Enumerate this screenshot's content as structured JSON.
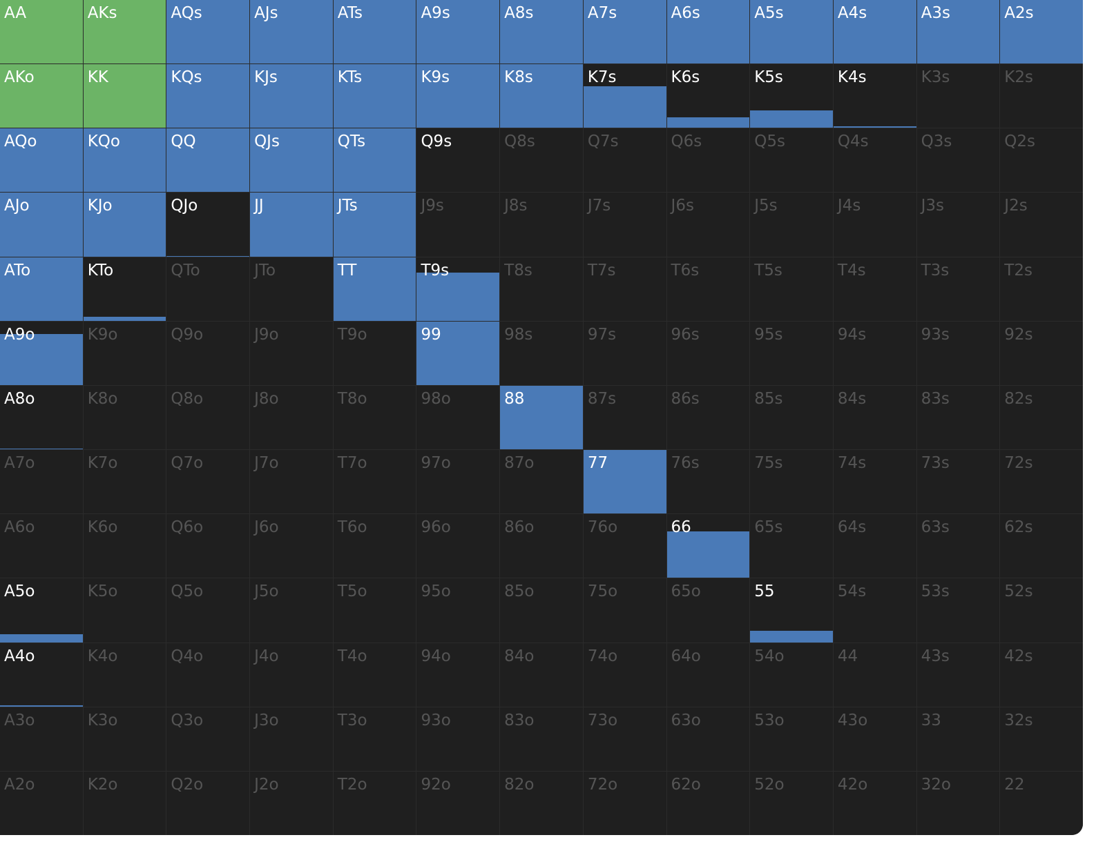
{
  "colors": {
    "raise_fill": "#4a7ab7",
    "allin_fill": "#6cb466",
    "empty_cell": "#1f1f1f",
    "inactive_text": "#555555",
    "active_text": "#ffffff"
  },
  "range_grid": [
    [
      {
        "hand": "AA",
        "freq": 1,
        "action": "allin"
      },
      {
        "hand": "AKs",
        "freq": 1,
        "action": "allin"
      },
      {
        "hand": "AQs",
        "freq": 1,
        "action": "raise"
      },
      {
        "hand": "AJs",
        "freq": 1,
        "action": "raise"
      },
      {
        "hand": "ATs",
        "freq": 1,
        "action": "raise"
      },
      {
        "hand": "A9s",
        "freq": 1,
        "action": "raise"
      },
      {
        "hand": "A8s",
        "freq": 1,
        "action": "raise"
      },
      {
        "hand": "A7s",
        "freq": 1,
        "action": "raise"
      },
      {
        "hand": "A6s",
        "freq": 1,
        "action": "raise"
      },
      {
        "hand": "A5s",
        "freq": 1,
        "action": "raise"
      },
      {
        "hand": "A4s",
        "freq": 1,
        "action": "raise"
      },
      {
        "hand": "A3s",
        "freq": 1,
        "action": "raise"
      },
      {
        "hand": "A2s",
        "freq": 1,
        "action": "raise"
      }
    ],
    [
      {
        "hand": "AKo",
        "freq": 1,
        "action": "allin"
      },
      {
        "hand": "KK",
        "freq": 1,
        "action": "allin"
      },
      {
        "hand": "KQs",
        "freq": 1,
        "action": "raise"
      },
      {
        "hand": "KJs",
        "freq": 1,
        "action": "raise"
      },
      {
        "hand": "KTs",
        "freq": 1,
        "action": "raise"
      },
      {
        "hand": "K9s",
        "freq": 1,
        "action": "raise"
      },
      {
        "hand": "K8s",
        "freq": 1,
        "action": "raise"
      },
      {
        "hand": "K7s",
        "freq": 0.65,
        "action": "raise"
      },
      {
        "hand": "K6s",
        "freq": 0.17,
        "action": "raise"
      },
      {
        "hand": "K5s",
        "freq": 0.27,
        "action": "raise"
      },
      {
        "hand": "K4s",
        "freq": 0.03,
        "action": "raise"
      },
      {
        "hand": "K3s",
        "freq": 0,
        "action": "raise"
      },
      {
        "hand": "K2s",
        "freq": 0,
        "action": "raise"
      }
    ],
    [
      {
        "hand": "AQo",
        "freq": 1,
        "action": "raise"
      },
      {
        "hand": "KQo",
        "freq": 1,
        "action": "raise"
      },
      {
        "hand": "QQ",
        "freq": 1,
        "action": "raise"
      },
      {
        "hand": "QJs",
        "freq": 1,
        "action": "raise"
      },
      {
        "hand": "QTs",
        "freq": 1,
        "action": "raise"
      },
      {
        "hand": "Q9s",
        "freq": 0.01,
        "action": "raise"
      },
      {
        "hand": "Q8s",
        "freq": 0,
        "action": "raise"
      },
      {
        "hand": "Q7s",
        "freq": 0,
        "action": "raise"
      },
      {
        "hand": "Q6s",
        "freq": 0,
        "action": "raise"
      },
      {
        "hand": "Q5s",
        "freq": 0,
        "action": "raise"
      },
      {
        "hand": "Q4s",
        "freq": 0,
        "action": "raise"
      },
      {
        "hand": "Q3s",
        "freq": 0,
        "action": "raise"
      },
      {
        "hand": "Q2s",
        "freq": 0,
        "action": "raise"
      }
    ],
    [
      {
        "hand": "AJo",
        "freq": 1,
        "action": "raise"
      },
      {
        "hand": "KJo",
        "freq": 1,
        "action": "raise"
      },
      {
        "hand": "QJo",
        "freq": 0.01,
        "action": "raise"
      },
      {
        "hand": "JJ",
        "freq": 1,
        "action": "raise"
      },
      {
        "hand": "JTs",
        "freq": 1,
        "action": "raise"
      },
      {
        "hand": "J9s",
        "freq": 0,
        "action": "raise"
      },
      {
        "hand": "J8s",
        "freq": 0,
        "action": "raise"
      },
      {
        "hand": "J7s",
        "freq": 0,
        "action": "raise"
      },
      {
        "hand": "J6s",
        "freq": 0,
        "action": "raise"
      },
      {
        "hand": "J5s",
        "freq": 0,
        "action": "raise"
      },
      {
        "hand": "J4s",
        "freq": 0,
        "action": "raise"
      },
      {
        "hand": "J3s",
        "freq": 0,
        "action": "raise"
      },
      {
        "hand": "J2s",
        "freq": 0,
        "action": "raise"
      }
    ],
    [
      {
        "hand": "ATo",
        "freq": 1,
        "action": "raise"
      },
      {
        "hand": "KTo",
        "freq": 0.06,
        "action": "raise"
      },
      {
        "hand": "QTo",
        "freq": 0,
        "action": "raise"
      },
      {
        "hand": "JTo",
        "freq": 0,
        "action": "raise"
      },
      {
        "hand": "TT",
        "freq": 1,
        "action": "raise"
      },
      {
        "hand": "T9s",
        "freq": 0.76,
        "action": "raise"
      },
      {
        "hand": "T8s",
        "freq": 0,
        "action": "raise"
      },
      {
        "hand": "T7s",
        "freq": 0,
        "action": "raise"
      },
      {
        "hand": "T6s",
        "freq": 0,
        "action": "raise"
      },
      {
        "hand": "T5s",
        "freq": 0,
        "action": "raise"
      },
      {
        "hand": "T4s",
        "freq": 0,
        "action": "raise"
      },
      {
        "hand": "T3s",
        "freq": 0,
        "action": "raise"
      },
      {
        "hand": "T2s",
        "freq": 0,
        "action": "raise"
      }
    ],
    [
      {
        "hand": "A9o",
        "freq": 0.8,
        "action": "raise"
      },
      {
        "hand": "K9o",
        "freq": 0,
        "action": "raise"
      },
      {
        "hand": "Q9o",
        "freq": 0,
        "action": "raise"
      },
      {
        "hand": "J9o",
        "freq": 0,
        "action": "raise"
      },
      {
        "hand": "T9o",
        "freq": 0,
        "action": "raise"
      },
      {
        "hand": "99",
        "freq": 1,
        "action": "raise"
      },
      {
        "hand": "98s",
        "freq": 0,
        "action": "raise"
      },
      {
        "hand": "97s",
        "freq": 0,
        "action": "raise"
      },
      {
        "hand": "96s",
        "freq": 0,
        "action": "raise"
      },
      {
        "hand": "95s",
        "freq": 0,
        "action": "raise"
      },
      {
        "hand": "94s",
        "freq": 0,
        "action": "raise"
      },
      {
        "hand": "93s",
        "freq": 0,
        "action": "raise"
      },
      {
        "hand": "92s",
        "freq": 0,
        "action": "raise"
      }
    ],
    [
      {
        "hand": "A8o",
        "freq": 0.01,
        "action": "raise"
      },
      {
        "hand": "K8o",
        "freq": 0,
        "action": "raise"
      },
      {
        "hand": "Q8o",
        "freq": 0,
        "action": "raise"
      },
      {
        "hand": "J8o",
        "freq": 0,
        "action": "raise"
      },
      {
        "hand": "T8o",
        "freq": 0,
        "action": "raise"
      },
      {
        "hand": "98o",
        "freq": 0,
        "action": "raise"
      },
      {
        "hand": "88",
        "freq": 1,
        "action": "raise"
      },
      {
        "hand": "87s",
        "freq": 0,
        "action": "raise"
      },
      {
        "hand": "86s",
        "freq": 0,
        "action": "raise"
      },
      {
        "hand": "85s",
        "freq": 0,
        "action": "raise"
      },
      {
        "hand": "84s",
        "freq": 0,
        "action": "raise"
      },
      {
        "hand": "83s",
        "freq": 0,
        "action": "raise"
      },
      {
        "hand": "82s",
        "freq": 0,
        "action": "raise"
      }
    ],
    [
      {
        "hand": "A7o",
        "freq": 0,
        "action": "raise"
      },
      {
        "hand": "K7o",
        "freq": 0,
        "action": "raise"
      },
      {
        "hand": "Q7o",
        "freq": 0,
        "action": "raise"
      },
      {
        "hand": "J7o",
        "freq": 0,
        "action": "raise"
      },
      {
        "hand": "T7o",
        "freq": 0,
        "action": "raise"
      },
      {
        "hand": "97o",
        "freq": 0,
        "action": "raise"
      },
      {
        "hand": "87o",
        "freq": 0,
        "action": "raise"
      },
      {
        "hand": "77",
        "freq": 1,
        "action": "raise"
      },
      {
        "hand": "76s",
        "freq": 0,
        "action": "raise"
      },
      {
        "hand": "75s",
        "freq": 0,
        "action": "raise"
      },
      {
        "hand": "74s",
        "freq": 0,
        "action": "raise"
      },
      {
        "hand": "73s",
        "freq": 0,
        "action": "raise"
      },
      {
        "hand": "72s",
        "freq": 0,
        "action": "raise"
      }
    ],
    [
      {
        "hand": "A6o",
        "freq": 0,
        "action": "raise"
      },
      {
        "hand": "K6o",
        "freq": 0,
        "action": "raise"
      },
      {
        "hand": "Q6o",
        "freq": 0,
        "action": "raise"
      },
      {
        "hand": "J6o",
        "freq": 0,
        "action": "raise"
      },
      {
        "hand": "T6o",
        "freq": 0,
        "action": "raise"
      },
      {
        "hand": "96o",
        "freq": 0,
        "action": "raise"
      },
      {
        "hand": "86o",
        "freq": 0,
        "action": "raise"
      },
      {
        "hand": "76o",
        "freq": 0,
        "action": "raise"
      },
      {
        "hand": "66",
        "freq": 0.73,
        "action": "raise"
      },
      {
        "hand": "65s",
        "freq": 0,
        "action": "raise"
      },
      {
        "hand": "64s",
        "freq": 0,
        "action": "raise"
      },
      {
        "hand": "63s",
        "freq": 0,
        "action": "raise"
      },
      {
        "hand": "62s",
        "freq": 0,
        "action": "raise"
      }
    ],
    [
      {
        "hand": "A5o",
        "freq": 0.12,
        "action": "raise"
      },
      {
        "hand": "K5o",
        "freq": 0,
        "action": "raise"
      },
      {
        "hand": "Q5o",
        "freq": 0,
        "action": "raise"
      },
      {
        "hand": "J5o",
        "freq": 0,
        "action": "raise"
      },
      {
        "hand": "T5o",
        "freq": 0,
        "action": "raise"
      },
      {
        "hand": "95o",
        "freq": 0,
        "action": "raise"
      },
      {
        "hand": "85o",
        "freq": 0,
        "action": "raise"
      },
      {
        "hand": "75o",
        "freq": 0,
        "action": "raise"
      },
      {
        "hand": "65o",
        "freq": 0,
        "action": "raise"
      },
      {
        "hand": "55",
        "freq": 0.18,
        "action": "raise"
      },
      {
        "hand": "54s",
        "freq": 0,
        "action": "raise"
      },
      {
        "hand": "53s",
        "freq": 0,
        "action": "raise"
      },
      {
        "hand": "52s",
        "freq": 0,
        "action": "raise"
      }
    ],
    [
      {
        "hand": "A4o",
        "freq": 0.02,
        "action": "raise"
      },
      {
        "hand": "K4o",
        "freq": 0,
        "action": "raise"
      },
      {
        "hand": "Q4o",
        "freq": 0,
        "action": "raise"
      },
      {
        "hand": "J4o",
        "freq": 0,
        "action": "raise"
      },
      {
        "hand": "T4o",
        "freq": 0,
        "action": "raise"
      },
      {
        "hand": "94o",
        "freq": 0,
        "action": "raise"
      },
      {
        "hand": "84o",
        "freq": 0,
        "action": "raise"
      },
      {
        "hand": "74o",
        "freq": 0,
        "action": "raise"
      },
      {
        "hand": "64o",
        "freq": 0,
        "action": "raise"
      },
      {
        "hand": "54o",
        "freq": 0,
        "action": "raise"
      },
      {
        "hand": "44",
        "freq": 0,
        "action": "raise"
      },
      {
        "hand": "43s",
        "freq": 0,
        "action": "raise"
      },
      {
        "hand": "42s",
        "freq": 0,
        "action": "raise"
      }
    ],
    [
      {
        "hand": "A3o",
        "freq": 0,
        "action": "raise"
      },
      {
        "hand": "K3o",
        "freq": 0,
        "action": "raise"
      },
      {
        "hand": "Q3o",
        "freq": 0,
        "action": "raise"
      },
      {
        "hand": "J3o",
        "freq": 0,
        "action": "raise"
      },
      {
        "hand": "T3o",
        "freq": 0,
        "action": "raise"
      },
      {
        "hand": "93o",
        "freq": 0,
        "action": "raise"
      },
      {
        "hand": "83o",
        "freq": 0,
        "action": "raise"
      },
      {
        "hand": "73o",
        "freq": 0,
        "action": "raise"
      },
      {
        "hand": "63o",
        "freq": 0,
        "action": "raise"
      },
      {
        "hand": "53o",
        "freq": 0,
        "action": "raise"
      },
      {
        "hand": "43o",
        "freq": 0,
        "action": "raise"
      },
      {
        "hand": "33",
        "freq": 0,
        "action": "raise"
      },
      {
        "hand": "32s",
        "freq": 0,
        "action": "raise"
      }
    ],
    [
      {
        "hand": "A2o",
        "freq": 0,
        "action": "raise"
      },
      {
        "hand": "K2o",
        "freq": 0,
        "action": "raise"
      },
      {
        "hand": "Q2o",
        "freq": 0,
        "action": "raise"
      },
      {
        "hand": "J2o",
        "freq": 0,
        "action": "raise"
      },
      {
        "hand": "T2o",
        "freq": 0,
        "action": "raise"
      },
      {
        "hand": "92o",
        "freq": 0,
        "action": "raise"
      },
      {
        "hand": "82o",
        "freq": 0,
        "action": "raise"
      },
      {
        "hand": "72o",
        "freq": 0,
        "action": "raise"
      },
      {
        "hand": "62o",
        "freq": 0,
        "action": "raise"
      },
      {
        "hand": "52o",
        "freq": 0,
        "action": "raise"
      },
      {
        "hand": "42o",
        "freq": 0,
        "action": "raise"
      },
      {
        "hand": "32o",
        "freq": 0,
        "action": "raise"
      },
      {
        "hand": "22",
        "freq": 0,
        "action": "raise"
      }
    ]
  ]
}
